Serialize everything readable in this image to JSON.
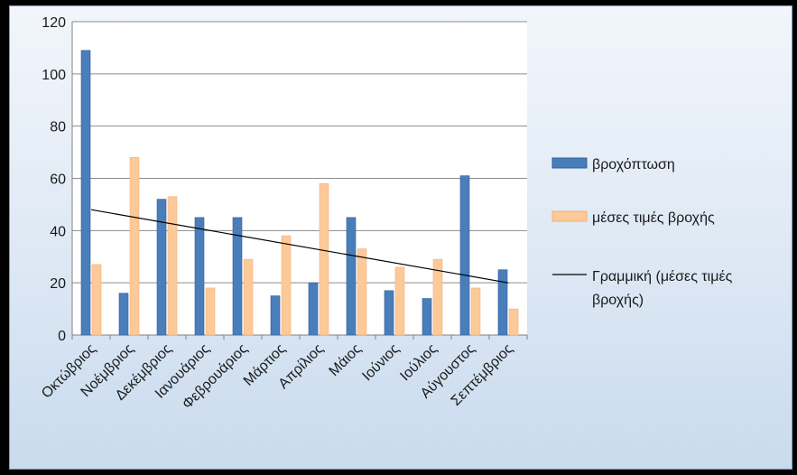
{
  "colors": {
    "series_bar": "#4a7ebb",
    "series_bar_stroke": "#2f5f9a",
    "series_avg": "#fcc998",
    "series_avg_stroke": "#f3b27a",
    "trendline": "#000000",
    "plot_background": "#ffffff",
    "gridline": "#8c8c8c"
  },
  "chart_data": {
    "type": "bar",
    "categories": [
      "Οκτώβριος",
      "Νοέμβριος",
      "Δεκέμβριος",
      "Ιανουάριος",
      "Φεβρουάριος",
      "Μάρτιος",
      "Απρίλιος",
      "Μάιος",
      "Ιούνιος",
      "Ιούλιος",
      "Αύγουστος",
      "Σεπτέμβριος"
    ],
    "series": [
      {
        "name": "βροχόπτωση",
        "values": [
          109,
          16,
          52,
          45,
          45,
          15,
          20,
          45,
          17,
          14,
          61,
          25
        ]
      },
      {
        "name": "μέσες τιμές βροχής",
        "values": [
          27,
          68,
          53,
          18,
          29,
          38,
          58,
          33,
          26,
          29,
          18,
          10
        ]
      }
    ],
    "trendline": {
      "name": "Γραμμική (μέσες τιμές βροχής)",
      "type": "linear",
      "start": 48,
      "end": 20
    },
    "title": "",
    "xlabel": "",
    "ylabel": "",
    "ylim": [
      0,
      120
    ],
    "yticks": [
      0,
      20,
      40,
      60,
      80,
      100,
      120
    ],
    "grid": "horizontal",
    "legend": "right"
  }
}
